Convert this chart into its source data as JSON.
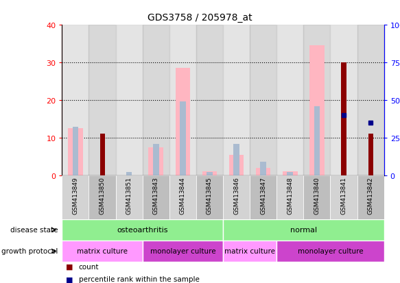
{
  "title": "GDS3758 / 205978_at",
  "samples": [
    "GSM413849",
    "GSM413850",
    "GSM413851",
    "GSM413843",
    "GSM413844",
    "GSM413845",
    "GSM413846",
    "GSM413847",
    "GSM413848",
    "GSM413840",
    "GSM413841",
    "GSM413842"
  ],
  "count": [
    0,
    11,
    0,
    0,
    0,
    0,
    0,
    0,
    0,
    0,
    30,
    11
  ],
  "percentile_rank": [
    0,
    0,
    0,
    0,
    0,
    0,
    0,
    0,
    0,
    0,
    40,
    35
  ],
  "value_absent": [
    12.5,
    0,
    0,
    7.5,
    28.5,
    1.0,
    5.5,
    2.0,
    1.0,
    34.5,
    0,
    0
  ],
  "rank_absent_pct": [
    32,
    0,
    2,
    21,
    49,
    2,
    21,
    9,
    2,
    46,
    0,
    0
  ],
  "disease_state_groups": [
    {
      "label": "osteoarthritis",
      "start": 0,
      "end": 6
    },
    {
      "label": "normal",
      "start": 6,
      "end": 12
    }
  ],
  "growth_protocol_groups": [
    {
      "label": "matrix culture",
      "start": 0,
      "end": 3,
      "light": true
    },
    {
      "label": "monolayer culture",
      "start": 3,
      "end": 6,
      "light": false
    },
    {
      "label": "matrix culture",
      "start": 6,
      "end": 8,
      "light": true
    },
    {
      "label": "monolayer culture",
      "start": 8,
      "end": 12,
      "light": false
    }
  ],
  "left_ylim": [
    0,
    40
  ],
  "right_ylim": [
    0,
    100
  ],
  "left_yticks": [
    0,
    10,
    20,
    30,
    40
  ],
  "right_yticks": [
    0,
    25,
    50,
    75,
    100
  ],
  "right_yticklabels": [
    "0",
    "25",
    "50",
    "75",
    "100%"
  ],
  "color_count": "#8B0000",
  "color_percentile": "#00008B",
  "color_value_absent": "#FFB6C1",
  "color_rank_absent": "#AABBD0",
  "color_ds_green": "#90EE90",
  "color_gp_light": "#FF99FF",
  "color_gp_dark": "#CC44CC",
  "col_bg_even": "#D3D3D3",
  "col_bg_odd": "#BEBEBE"
}
